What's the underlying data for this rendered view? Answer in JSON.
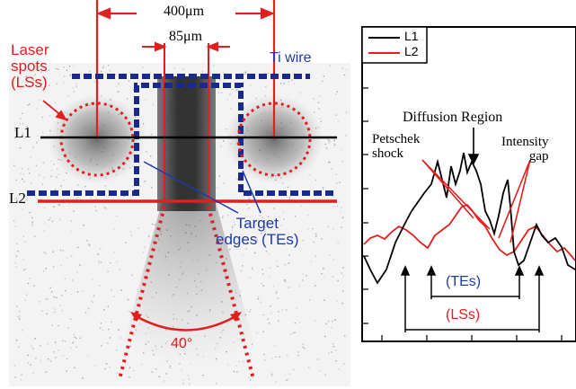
{
  "figure": {
    "colors": {
      "red": "#e0201f",
      "blue": "#1c3aa9",
      "navy": "#1a2a8c",
      "black": "#000000"
    },
    "left_panel": {
      "dim_outer": "400μm",
      "dim_inner": "85μm",
      "laser_spots": "Laser\nspots\n(LSs)",
      "ti_wire": "Ti wire",
      "line1": "L1",
      "line2": "L2",
      "target_edges": "Target\nedges (TEs)",
      "angle": "40°"
    },
    "right_panel": {
      "legend": [
        {
          "name": "L1",
          "color": "#000000"
        },
        {
          "name": "L2",
          "color": "#e0201f"
        }
      ],
      "diffusion_region": "Diffusion Region",
      "petschek_shock": "Petschek\nshock",
      "intensity_gap": "Intensity\ngap",
      "tes": "(TEs)",
      "lss": "(LSs)"
    }
  }
}
